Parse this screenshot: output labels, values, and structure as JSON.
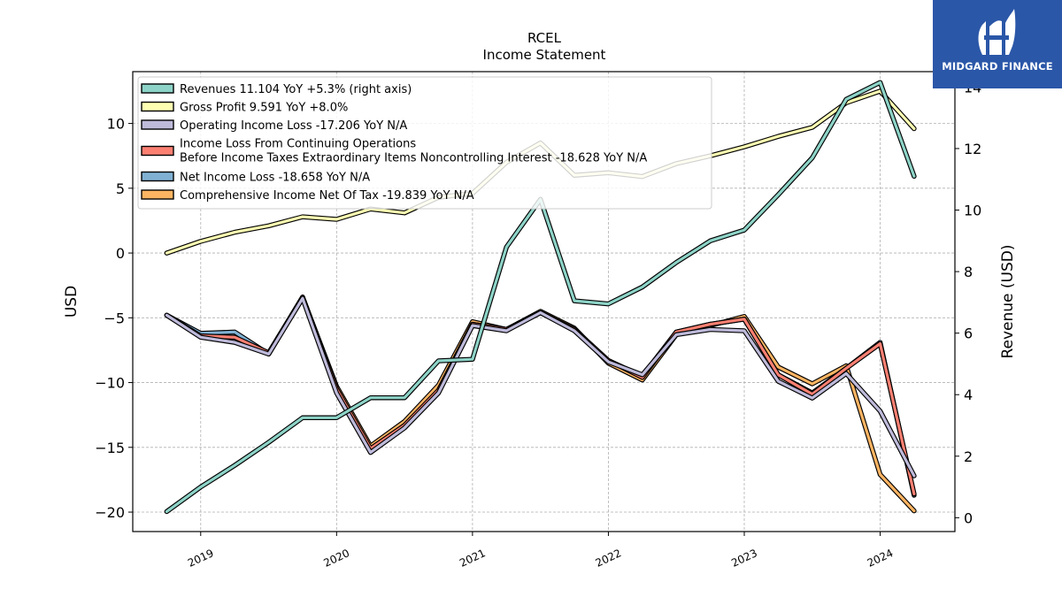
{
  "brand": {
    "name": "MIDGARD FINANCE",
    "bg_color": "#2b57a8",
    "icon": "midgard-logo-icon"
  },
  "chart_data": {
    "type": "line",
    "title": "RCEL",
    "subtitle": "Income Statement",
    "ylabel": "USD",
    "y2label": "Revenue (USD)",
    "ylim": [
      -21.5,
      14.0
    ],
    "y2lim": [
      -0.45,
      14.5
    ],
    "yticks": [
      -20,
      -15,
      -10,
      -5,
      0,
      5,
      10
    ],
    "y2ticks": [
      0,
      2,
      4,
      6,
      8,
      10,
      12,
      14
    ],
    "xlim": [
      2018.5,
      2024.55
    ],
    "xticks": [
      "2019",
      "2020",
      "2021",
      "2022",
      "2023",
      "2024"
    ],
    "x": [
      2018.75,
      2019.0,
      2019.25,
      2019.5,
      2019.75,
      2020.0,
      2020.25,
      2020.5,
      2020.75,
      2021.0,
      2021.25,
      2021.5,
      2021.75,
      2022.0,
      2022.25,
      2022.5,
      2022.75,
      2023.0,
      2023.25,
      2023.5,
      2023.75,
      2024.0,
      2024.25
    ],
    "grid": true,
    "legend_position": "top-left",
    "series": [
      {
        "name": "Revenues",
        "legend": "Revenues  11.104 YoY +5.3% (right axis)",
        "color": "#8dd3c7",
        "axis": "right",
        "values": [
          0.2,
          1.0,
          1.7,
          2.45,
          3.25,
          3.25,
          3.9,
          3.9,
          5.1,
          5.15,
          8.8,
          10.35,
          7.05,
          6.95,
          7.5,
          8.3,
          9.0,
          9.35,
          10.5,
          11.7,
          13.6,
          14.15,
          11.1
        ]
      },
      {
        "name": "Gross Profit",
        "legend": "Gross Profit  9.591 YoY +8.0%",
        "color": "#ffffb3",
        "axis": "left",
        "values": [
          0.0,
          0.9,
          1.6,
          2.1,
          2.8,
          2.6,
          3.4,
          3.1,
          4.3,
          4.6,
          7.0,
          8.5,
          6.0,
          6.2,
          5.9,
          6.9,
          7.5,
          8.2,
          9.0,
          9.7,
          11.6,
          12.5,
          9.6
        ]
      },
      {
        "name": "Operating Income Loss",
        "legend": "Operating Income Loss  -17.206 YoY N/A",
        "color": "#bebada",
        "axis": "left",
        "values": [
          -4.8,
          -6.5,
          -6.9,
          -7.8,
          -3.5,
          -10.8,
          -15.4,
          -13.5,
          -10.8,
          -5.6,
          -6.0,
          -4.6,
          -6.0,
          -8.4,
          -9.4,
          -6.3,
          -5.9,
          -6.0,
          -9.9,
          -11.2,
          -9.3,
          -12.2,
          -17.2
        ]
      },
      {
        "name": "Income Loss From Continuing Operations Before Income Taxes Extraordinary Items Noncontrolling Interest",
        "legend": "Income Loss From Continuing Operations\nBefore Income Taxes Extraordinary Items Noncontrolling Interest  -18.628 YoY N/A",
        "color": "#fb8072",
        "axis": "left",
        "values": [
          -4.8,
          -6.4,
          -6.5,
          -7.7,
          -3.4,
          -10.5,
          -15.1,
          -13.3,
          -10.6,
          -5.5,
          -5.9,
          -4.6,
          -5.9,
          -8.3,
          -9.6,
          -6.1,
          -5.5,
          -5.1,
          -9.4,
          -10.9,
          -8.9,
          -7.0,
          -18.6
        ]
      },
      {
        "name": "Net Income Loss",
        "legend": "Net Income Loss  -18.658 YoY N/A",
        "color": "#80b1d3",
        "axis": "left",
        "values": [
          -4.8,
          -6.2,
          -6.1,
          -7.8,
          -3.4,
          -10.5,
          -15.3,
          -13.3,
          -10.7,
          -5.5,
          -5.9,
          -4.6,
          -5.9,
          -8.3,
          -9.5,
          -6.1,
          -5.5,
          -5.1,
          -9.4,
          -10.8,
          -8.9,
          -6.9,
          -18.7
        ]
      },
      {
        "name": "Comprehensive Income Net Of Tax",
        "legend": "Comprehensive Income Net Of Tax  -19.839 YoY N/A",
        "color": "#fdb462",
        "axis": "left",
        "values": [
          null,
          null,
          null,
          null,
          -3.4,
          -10.3,
          -14.9,
          -13.0,
          -10.2,
          -5.3,
          -5.9,
          -4.5,
          -5.8,
          -8.5,
          -9.8,
          -6.3,
          -5.6,
          -4.9,
          -8.8,
          -10.1,
          -8.7,
          -17.1,
          -19.9
        ]
      }
    ]
  }
}
